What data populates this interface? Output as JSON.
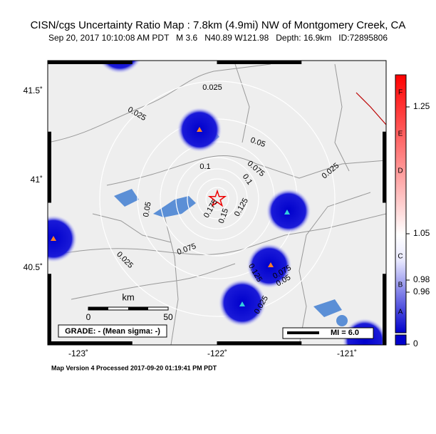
{
  "header": {
    "title": "CISN/cgs Uncertainty Ratio Map : 7.8km (4.9mi) NW of Montgomery Creek, CA",
    "subtitle": "Sep 20, 2017 10:10:08 AM PDT   M 3.6   N40.89 W121.98   Depth: 16.9km   ID:72895806"
  },
  "map": {
    "lat_labels": [
      "41.5˚",
      "41˚",
      "40.5˚"
    ],
    "lon_labels": [
      "-123˚",
      "-122˚",
      "-121˚"
    ],
    "contour_labels": [
      "0.025",
      "0.025",
      "0.05",
      "0.075",
      "0.1",
      "0.1",
      "0.05",
      "0.175",
      "0.15",
      "0.125",
      "0.075",
      "0.025",
      "0.025",
      "0.025",
      "0.125",
      "0.075",
      "0.05"
    ],
    "scale": {
      "unit": "km",
      "start": "0",
      "end": "50"
    },
    "grade": "GRADE: - (Mean sigma: -)",
    "mi_legend": "MI = 6.0"
  },
  "colorbar": {
    "letters": [
      "F",
      "E",
      "D",
      "C",
      "B",
      "A"
    ],
    "ticks": [
      "1.25",
      "1.05",
      "0.98",
      "0.96",
      "0"
    ]
  },
  "footer": "Map Version 4 Processed 2017-09-20 01:19:41 PM PDT"
}
